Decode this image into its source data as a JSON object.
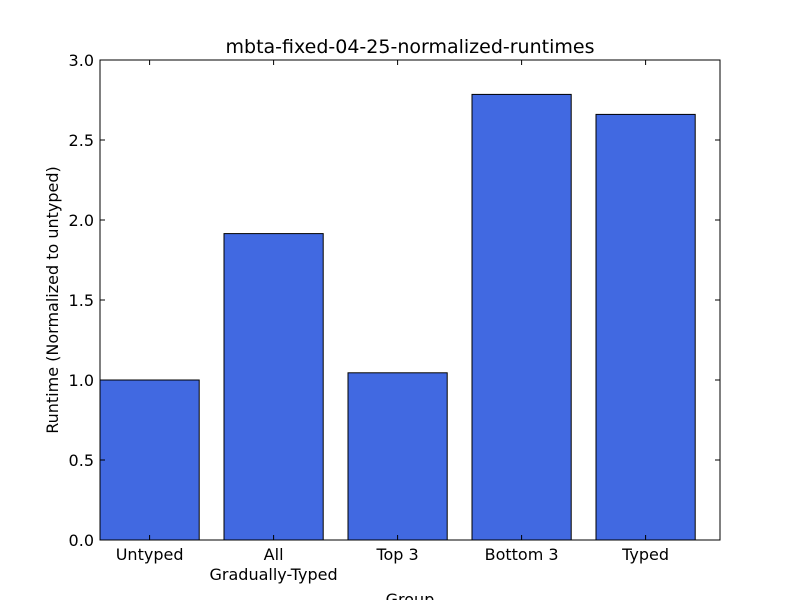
{
  "chart_data": {
    "type": "bar",
    "title": "mbta-fixed-04-25-normalized-runtimes",
    "xlabel": "Group",
    "ylabel": "Runtime (Normalized to untyped)",
    "categories": [
      "Untyped",
      "All\nGradually-Typed",
      "Top 3",
      "Bottom 3",
      "Typed"
    ],
    "values": [
      1.0,
      1.915,
      1.045,
      2.785,
      2.66
    ],
    "ylim": [
      0,
      3.0
    ],
    "yticks": [
      "0.0",
      "0.5",
      "1.0",
      "1.5",
      "2.0",
      "2.5",
      "3.0"
    ],
    "grid": false,
    "legend": "none",
    "colors": {
      "bar_fill": "#4169e1",
      "bar_edge": "#000000",
      "axes": "#000000",
      "background": "#ffffff"
    }
  }
}
